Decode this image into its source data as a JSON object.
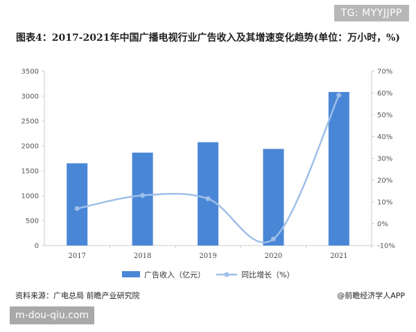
{
  "watermark_tag": "TG: MYYJJPP",
  "title": "图表4：2017-2021年中国广播电视行业广告收入及其增速变化趋势(单位：万小时，%)",
  "source": "资料来源：广电总局 前瞻产业研究院",
  "brand": "@前瞻经济学人APP",
  "footer_tag": "m-dou-qiu.com",
  "colors": {
    "bar": "#4a86d6",
    "line": "#9ebfe8",
    "axis": "#cccccc"
  },
  "chart_data": {
    "type": "bar",
    "categories": [
      "2017",
      "2018",
      "2019",
      "2020",
      "2021"
    ],
    "series": [
      {
        "name": "广告收入（亿元）",
        "type": "bar",
        "axis": "left",
        "values": [
          1651,
          1866,
          2075,
          1940,
          3083
        ]
      },
      {
        "name": "同比增长（%）",
        "type": "line",
        "axis": "right",
        "values": [
          7,
          13,
          11.5,
          -7,
          59
        ]
      }
    ],
    "y_left": {
      "min": 0,
      "max": 3500,
      "ticks": [
        "0",
        "500",
        "1000",
        "1500",
        "2000",
        "2500",
        "3000",
        "3500"
      ]
    },
    "y_right": {
      "min": -10,
      "max": 70,
      "ticks": [
        "-10%",
        "0%",
        "10%",
        "20%",
        "30%",
        "40%",
        "50%",
        "60%",
        "70%"
      ]
    },
    "legend_position": "bottom"
  }
}
